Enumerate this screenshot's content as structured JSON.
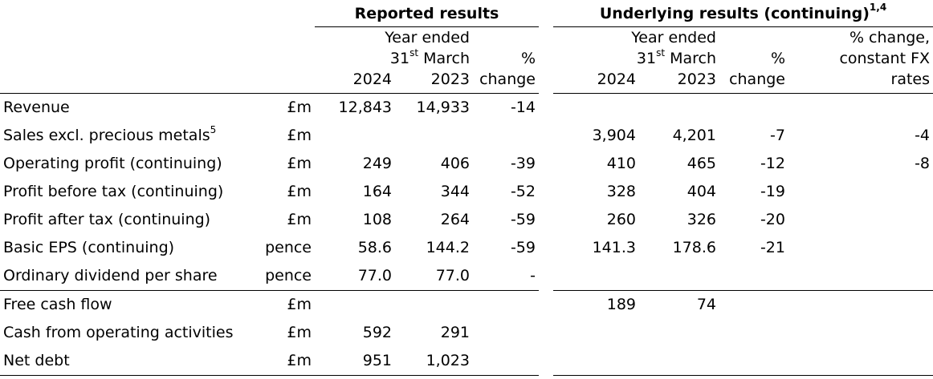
{
  "groups": {
    "reported": "Reported results",
    "underlying": "Underlying results (continuing)",
    "underlying_sup": "1,4"
  },
  "headers": {
    "year_ended_line1": "Year ended",
    "date_day": "31",
    "date_sup": "st",
    "date_month": "March",
    "pct_line1": "%",
    "pct_line2": "change",
    "y2024": "2024",
    "y2023": "2023",
    "fx_line1": "% change,",
    "fx_line2": "constant FX",
    "fx_line3": "rates"
  },
  "rows": [
    {
      "label": "Revenue",
      "label_sup": "",
      "unit": "£m",
      "r2024": "12,843",
      "r2023": "14,933",
      "rchg": "-14",
      "u2024": "",
      "u2023": "",
      "uchg": "",
      "fx": ""
    },
    {
      "label": "Sales excl. precious metals",
      "label_sup": "5",
      "unit": "£m",
      "r2024": "",
      "r2023": "",
      "rchg": "",
      "u2024": "3,904",
      "u2023": "4,201",
      "uchg": "-7",
      "fx": "-4"
    },
    {
      "label": "Operating profit (continuing)",
      "label_sup": "",
      "unit": "£m",
      "r2024": "249",
      "r2023": "406",
      "rchg": "-39",
      "u2024": "410",
      "u2023": "465",
      "uchg": "-12",
      "fx": "-8"
    },
    {
      "label": "Profit before tax (continuing)",
      "label_sup": "",
      "unit": "£m",
      "r2024": "164",
      "r2023": "344",
      "rchg": "-52",
      "u2024": "328",
      "u2023": "404",
      "uchg": "-19",
      "fx": ""
    },
    {
      "label": "Profit after tax (continuing)",
      "label_sup": "",
      "unit": "£m",
      "r2024": "108",
      "r2023": "264",
      "rchg": "-59",
      "u2024": "260",
      "u2023": "326",
      "uchg": "-20",
      "fx": ""
    },
    {
      "label": "Basic EPS (continuing)",
      "label_sup": "",
      "unit": "pence",
      "r2024": "58.6",
      "r2023": "144.2",
      "rchg": "-59",
      "u2024": "141.3",
      "u2023": "178.6",
      "uchg": "-21",
      "fx": ""
    },
    {
      "label": "Ordinary dividend per share",
      "label_sup": "",
      "unit": "pence",
      "r2024": "77.0",
      "r2023": "77.0",
      "rchg": "-",
      "u2024": "",
      "u2023": "",
      "uchg": "",
      "fx": ""
    },
    {
      "label": "Free cash flow",
      "label_sup": "",
      "unit": "£m",
      "r2024": "",
      "r2023": "",
      "rchg": "",
      "u2024": "189",
      "u2023": "74",
      "uchg": "",
      "fx": ""
    },
    {
      "label": "Cash from operating activities",
      "label_sup": "",
      "unit": "£m",
      "r2024": "592",
      "r2023": "291",
      "rchg": "",
      "u2024": "",
      "u2023": "",
      "uchg": "",
      "fx": ""
    },
    {
      "label": "Net debt",
      "label_sup": "",
      "unit": "£m",
      "r2024": "951",
      "r2023": "1,023",
      "rchg": "",
      "u2024": "",
      "u2023": "",
      "uchg": "",
      "fx": ""
    }
  ]
}
